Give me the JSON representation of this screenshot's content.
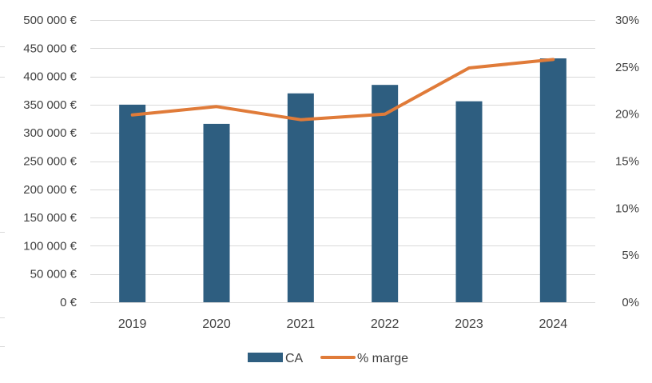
{
  "chart_data": {
    "type": "bar",
    "categories": [
      "2019",
      "2020",
      "2021",
      "2022",
      "2023",
      "2024"
    ],
    "series": [
      {
        "name": "CA",
        "type": "bar",
        "axis": "left",
        "values": [
          350000,
          316000,
          370000,
          385000,
          356000,
          432000
        ],
        "color": "#2e5e80"
      },
      {
        "name": "% marge",
        "type": "line",
        "axis": "right",
        "values": [
          19.9,
          20.8,
          19.4,
          20.0,
          24.9,
          25.8
        ],
        "color": "#e07b39"
      }
    ],
    "y_left": {
      "ylim": [
        0,
        500000
      ],
      "ticks": [
        0,
        50000,
        100000,
        150000,
        200000,
        250000,
        300000,
        350000,
        400000,
        450000,
        500000
      ],
      "tick_labels": [
        "0 €",
        "50 000 €",
        "100 000 €",
        "150 000 €",
        "200 000 €",
        "250 000 €",
        "300 000 €",
        "350 000 €",
        "400 000 €",
        "450 000 €",
        "500 000 €"
      ]
    },
    "y_right": {
      "ylim": [
        0,
        30
      ],
      "ticks": [
        0,
        5,
        10,
        15,
        20,
        25,
        30
      ],
      "tick_labels": [
        "0%",
        "5%",
        "10%",
        "15%",
        "20%",
        "25%",
        "30%"
      ]
    },
    "title": "",
    "xlabel": "",
    "ylabel": "",
    "grid": true,
    "legend_position": "bottom",
    "legend": [
      "CA",
      "% marge"
    ]
  }
}
